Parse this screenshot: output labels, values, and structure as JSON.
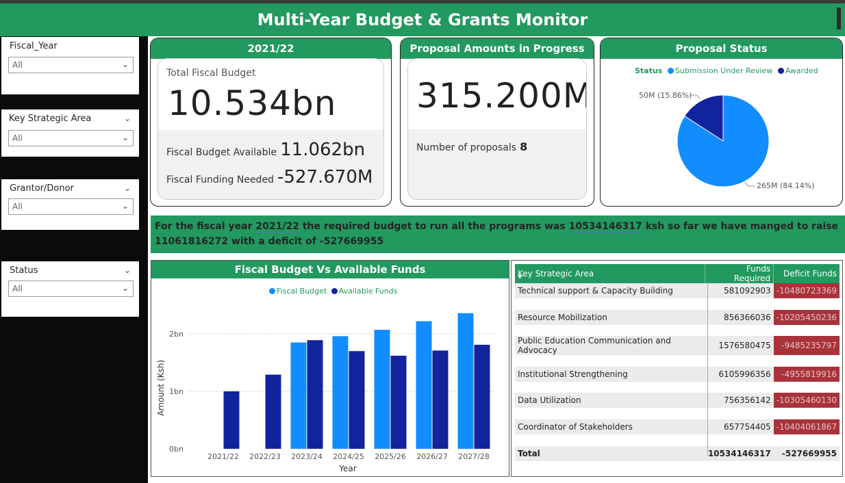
{
  "header": {
    "title": "Multi-Year Budget & Grants Monitor"
  },
  "slicers": [
    {
      "label": "Fiscal_Year",
      "value": "All"
    },
    {
      "label": "Key Strategic Area",
      "value": "All"
    },
    {
      "label": "Grantor/Donor",
      "value": "All"
    },
    {
      "label": "Status",
      "value": "All"
    }
  ],
  "budget_card": {
    "title": "2021/22",
    "total_label": "Total Fiscal Budget",
    "total_value": "10.534bn",
    "available_label": "Fiscal Budget Available",
    "available_value": "11.062bn",
    "needed_label": "Fiscal Funding Needed",
    "needed_value": "-527.670M"
  },
  "proposal_card": {
    "title": "Proposal Amounts in Progress",
    "amount": "315.200M",
    "count_label": "Number of proposals",
    "count_value": "8"
  },
  "status_card": {
    "title": "Proposal Status",
    "legend_title": "Status",
    "legend": [
      "Submission Under Review",
      "Awarded"
    ],
    "label_small": "50M (15.86%)",
    "label_large": "265M (84.14%)",
    "colors": {
      "review": "#118dff",
      "awarded": "#12239e"
    }
  },
  "narrative": {
    "p1": "For the fiscal year ",
    "year": "2021/22",
    "p2": " the required budget to run all the programs was ",
    "required": "10534146317",
    "p3": " ksh so far we have manged to raise",
    "raised": "11061816272",
    "p4": " with a deficit of ",
    "deficit": "-527669955"
  },
  "bar_chart": {
    "title": "Fiscal Budget Vs Available Funds",
    "ylabel": "Amount (Ksh)",
    "xlabel": "Year"
  },
  "table": {
    "headers": [
      "Key Strategic Area",
      "Funds Required",
      "Deficit Funds"
    ],
    "rows": [
      {
        "area": "Technical support & Capacity Building",
        "required": "581092903",
        "deficit": "-10480723369"
      },
      {
        "area": "Resource Mobilization",
        "required": "856366036",
        "deficit": "-10205450236"
      },
      {
        "area": "Public Education Communication and Advocacy",
        "required": "1576580475",
        "deficit": "-9485235797"
      },
      {
        "area": "Institutional Strengthening",
        "required": "6105996356",
        "deficit": "-4955819916"
      },
      {
        "area": "Data Utilization",
        "required": "756356142",
        "deficit": "-10305460130"
      },
      {
        "area": "Coordinator of Stakeholders",
        "required": "657754405",
        "deficit": "-10404061867"
      }
    ],
    "total": {
      "label": "Total",
      "required": "10534146317",
      "deficit": "-527669955"
    }
  },
  "chart_data": [
    {
      "type": "pie",
      "title": "Proposal Status",
      "legend_title": "Status",
      "categories": [
        "Submission Under Review",
        "Awarded"
      ],
      "values": [
        265,
        50
      ],
      "percentages": [
        84.14,
        15.86
      ],
      "unit": "M",
      "colors": [
        "#118dff",
        "#12239e"
      ],
      "legend": "top"
    },
    {
      "type": "bar",
      "title": "Fiscal Budget Vs Available Funds",
      "xlabel": "Year",
      "ylabel": "Amount (Ksh)",
      "categories": [
        "2021/22",
        "2022/23",
        "2023/24",
        "2024/25",
        "2025/26",
        "2026/27",
        "2027/28"
      ],
      "series": [
        {
          "name": "Fiscal Budget",
          "color": "#118dff",
          "values": [
            0,
            0,
            1.85,
            1.96,
            2.07,
            2.22,
            2.36
          ]
        },
        {
          "name": "Available Funds",
          "color": "#12239e",
          "values": [
            1.0,
            1.29,
            1.89,
            1.7,
            1.62,
            1.71,
            1.81
          ]
        }
      ],
      "yticks": [
        "0bn",
        "1bn",
        "2bn"
      ],
      "ylim": [
        0,
        2.5
      ],
      "grid": true,
      "legend": "top"
    }
  ]
}
